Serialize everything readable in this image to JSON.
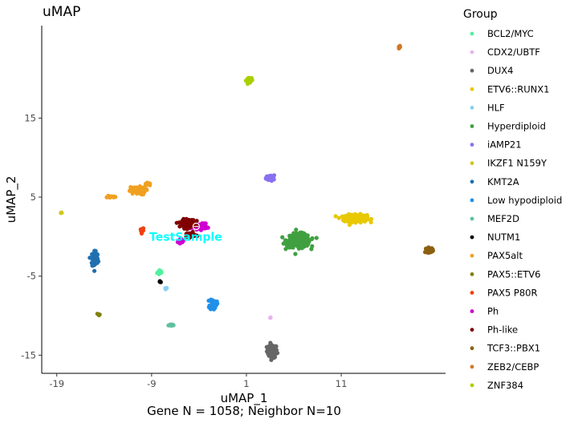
{
  "chart_data": {
    "type": "scatter",
    "title": "uMAP",
    "xlabel": "uMAP_1",
    "ylabel": "uMAP_2",
    "caption": "Gene N = 1058; Neighbor N=10",
    "x_ticks": [
      -19,
      -9,
      1,
      11
    ],
    "y_ticks": [
      -15,
      -5,
      5,
      15
    ],
    "xlim": [
      -20.5,
      22
    ],
    "ylim": [
      -17.3,
      26.7
    ],
    "grid": false,
    "legend": {
      "title": "Group",
      "position": "right"
    },
    "groups": [
      {
        "name": "BCL2/MYC",
        "color": "#50f0a0",
        "cluster": {
          "x": -8.1,
          "y": -4.5,
          "sx": 0.25,
          "sy": 0.3,
          "n": 12
        }
      },
      {
        "name": "CDX2/UBTF",
        "color": "#e8b4f0",
        "cluster": {
          "x": 3.5,
          "y": -10.2,
          "sx": 0.1,
          "sy": 0.1,
          "n": 2
        }
      },
      {
        "name": "DUX4",
        "color": "#666666",
        "cluster": {
          "x": 3.7,
          "y": -14.5,
          "sx": 0.45,
          "sy": 0.7,
          "n": 70
        }
      },
      {
        "name": "ETV6::RUNX1",
        "color": "#e8c800",
        "cluster": {
          "x": 12.5,
          "y": 2.3,
          "sx": 1.0,
          "sy": 0.4,
          "n": 200
        }
      },
      {
        "name": "HLF",
        "color": "#88d0f0",
        "cluster": {
          "x": -7.5,
          "y": -6.5,
          "sx": 0.1,
          "sy": 0.1,
          "n": 3
        }
      },
      {
        "name": "Hyperdiploid",
        "color": "#40a040",
        "cluster": {
          "x": 6.5,
          "y": -0.5,
          "sx": 1.0,
          "sy": 0.7,
          "n": 280
        }
      },
      {
        "name": "iAMP21",
        "color": "#8870f0",
        "cluster": {
          "x": 3.5,
          "y": 7.4,
          "sx": 0.35,
          "sy": 0.3,
          "n": 40
        }
      },
      {
        "name": "IKZF1 N159Y",
        "color": "#d0c820",
        "cluster": {
          "x": -18.5,
          "y": 3.0,
          "sx": 0.12,
          "sy": 0.1,
          "n": 4
        }
      },
      {
        "name": "KMT2A",
        "color": "#2070b0",
        "cluster": {
          "x": -15.0,
          "y": -2.8,
          "sx": 0.3,
          "sy": 0.9,
          "n": 80
        }
      },
      {
        "name": "Low hypodiploid",
        "color": "#2090e8",
        "cluster": {
          "x": -2.5,
          "y": -8.5,
          "sx": 0.3,
          "sy": 0.6,
          "n": 40
        }
      },
      {
        "name": "MEF2D",
        "color": "#60c0a0",
        "cluster": {
          "x": -7.0,
          "y": -11.2,
          "sx": 0.35,
          "sy": 0.1,
          "n": 14
        }
      },
      {
        "name": "NUTM1",
        "color": "#000000",
        "cluster": {
          "x": -8.1,
          "y": -5.7,
          "sx": 0.1,
          "sy": 0.15,
          "n": 4
        }
      },
      {
        "name": "PAX5alt",
        "color": "#f0a020",
        "cluster": {
          "x": -10.5,
          "y": 5.8,
          "sx": 0.7,
          "sy": 0.4,
          "n": 70
        }
      },
      {
        "name": "PAX5::ETV6",
        "color": "#808010",
        "cluster": {
          "x": -14.6,
          "y": -9.8,
          "sx": 0.1,
          "sy": 0.15,
          "n": 6
        }
      },
      {
        "name": "PAX5 P80R",
        "color": "#f04010",
        "cluster": {
          "x": -10.0,
          "y": 0.8,
          "sx": 0.15,
          "sy": 0.3,
          "n": 12
        }
      },
      {
        "name": "Ph",
        "color": "#d000d0",
        "cluster": {
          "x": -4.0,
          "y": 1.3,
          "sx": 0.7,
          "sy": 0.3,
          "n": 100
        }
      },
      {
        "name": "Ph-like",
        "color": "#800000",
        "cluster": {
          "x": -5.1,
          "y": 1.7,
          "sx": 0.55,
          "sy": 0.4,
          "n": 150
        }
      },
      {
        "name": "TCF3::PBX1",
        "color": "#8b6010",
        "cluster": {
          "x": 20.3,
          "y": -1.7,
          "sx": 0.35,
          "sy": 0.25,
          "n": 40
        }
      },
      {
        "name": "ZEB2/CEBP",
        "color": "#d07828",
        "cluster": {
          "x": 17.2,
          "y": 24.0,
          "sx": 0.15,
          "sy": 0.1,
          "n": 4
        }
      },
      {
        "name": "ZNF384",
        "color": "#a8d000",
        "cluster": {
          "x": 1.3,
          "y": 19.8,
          "sx": 0.25,
          "sy": 0.35,
          "n": 30
        }
      }
    ],
    "extra_points": [
      {
        "group": "Ph",
        "x": -6.0,
        "y": -0.5,
        "sx": 0.2,
        "sy": 0.25,
        "n": 25
      },
      {
        "group": "PAX5alt",
        "x": -13.3,
        "y": 5.0,
        "sx": 0.4,
        "sy": 0.12,
        "n": 12
      },
      {
        "group": "PAX5alt",
        "x": -9.4,
        "y": 6.7,
        "sx": 0.25,
        "sy": 0.2,
        "n": 8
      },
      {
        "group": "Ph-like",
        "x": -5.0,
        "y": 0.2,
        "sx": 0.5,
        "sy": 0.25,
        "n": 40
      }
    ],
    "test_sample": {
      "label": "TestSample",
      "x": -4.3,
      "y": 1.3,
      "color": "#00ffff"
    }
  }
}
